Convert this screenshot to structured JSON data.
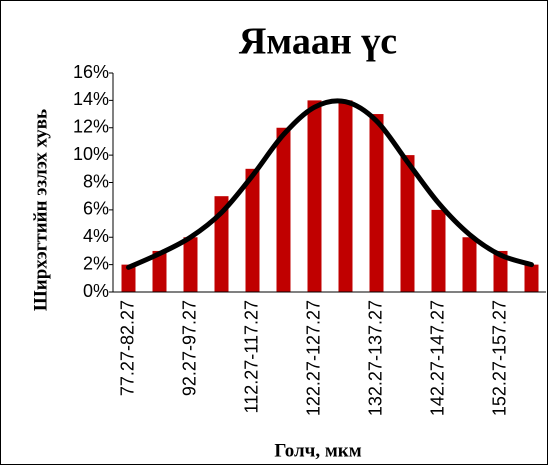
{
  "chart_data": {
    "type": "bar",
    "title": "Ямаан үс",
    "x_label": "Голч, мкм",
    "y_label": "Ширхэгтийн эзлэх хувь",
    "categories": [
      "77.27-82.27",
      null,
      "92.27-97.27",
      null,
      "112.27-117.27",
      null,
      "122.27-127.27",
      null,
      "132.27-137.27",
      null,
      "142.27-147.27",
      null,
      "152.27-157.27",
      null
    ],
    "series": [
      {
        "type": "bar",
        "color": "#c00000",
        "values": [
          2,
          3,
          4,
          7,
          9,
          12,
          14,
          14,
          13,
          10,
          6,
          4,
          3,
          2
        ]
      },
      {
        "type": "line",
        "color": "#000000",
        "values": [
          1.8,
          2.8,
          4,
          5.8,
          8.5,
          11.5,
          13.5,
          13.9,
          12.5,
          9.5,
          6.5,
          4.2,
          2.7,
          2
        ]
      }
    ],
    "ylim": [
      0,
      16
    ],
    "yticks": [
      {
        "value": 0,
        "label": "0%"
      },
      {
        "value": 2,
        "label": "2%"
      },
      {
        "value": 4,
        "label": "4%"
      },
      {
        "value": 6,
        "label": "6%"
      },
      {
        "value": 8,
        "label": "8%"
      },
      {
        "value": 10,
        "label": "10%"
      },
      {
        "value": 12,
        "label": "12%"
      },
      {
        "value": 14,
        "label": "14%"
      },
      {
        "value": 16,
        "label": "16%"
      }
    ]
  }
}
